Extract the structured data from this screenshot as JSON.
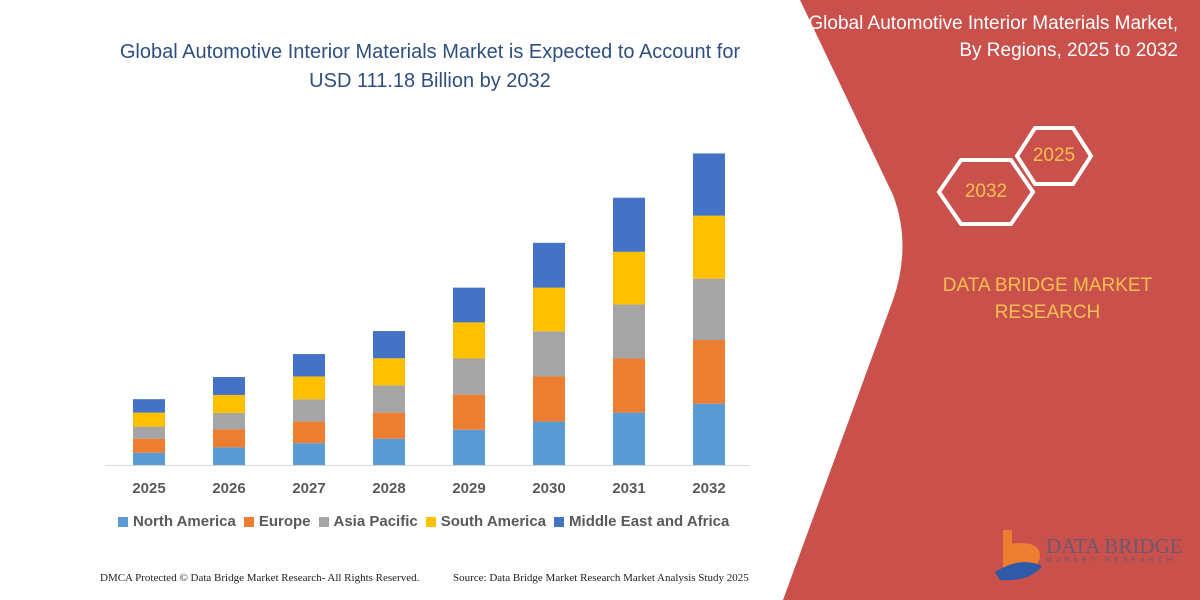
{
  "header": {
    "title": "Global Automotive Interior Materials Market is Expected to Account for USD 111.18 Billion by 2032"
  },
  "panel": {
    "title": "Global Automotive Interior Materials Market, By Regions, 2025 to 2032",
    "hex_start": "2025",
    "hex_end": "2032",
    "brand": "DATA BRIDGE MARKET RESEARCH",
    "logo_text": "DATA BRIDGE",
    "logo_sub": "MARKET RESEARCH",
    "color": "#c9504b",
    "accent": "#f6c04f"
  },
  "footer": {
    "left": "DMCA Protected © Data Bridge Market Research-  All Rights Reserved.",
    "right": "Source: Data Bridge Market Research  Market Analysis Study 2025"
  },
  "chart_data": {
    "type": "bar",
    "stacked": true,
    "title": "",
    "xlabel": "",
    "ylabel": "",
    "ylim": [
      0,
      116
    ],
    "grid": false,
    "legend_position": "bottom",
    "categories": [
      "2025",
      "2026",
      "2027",
      "2028",
      "2029",
      "2030",
      "2031",
      "2032"
    ],
    "series": [
      {
        "name": "North America",
        "color": "#5b9bd5",
        "values": [
          4.4,
          6.3,
          7.8,
          9.4,
          12.6,
          15.5,
          18.7,
          21.9
        ]
      },
      {
        "name": "Europe",
        "color": "#ed7d31",
        "values": [
          5.0,
          6.4,
          7.7,
          9.3,
          12.5,
          16.1,
          19.3,
          22.7
        ]
      },
      {
        "name": "Asia Pacific",
        "color": "#a5a5a5",
        "values": [
          4.3,
          5.9,
          7.9,
          9.7,
          12.9,
          16.1,
          19.3,
          21.9
        ]
      },
      {
        "name": "South America",
        "color": "#ffc000",
        "values": [
          5.0,
          6.4,
          8.2,
          9.7,
          12.9,
          15.6,
          18.8,
          22.5
        ]
      },
      {
        "name": "Middle East and Africa",
        "color": "#4472c4",
        "values": [
          4.8,
          6.4,
          8.0,
          9.7,
          12.4,
          16.0,
          19.3,
          22.2
        ]
      }
    ]
  }
}
